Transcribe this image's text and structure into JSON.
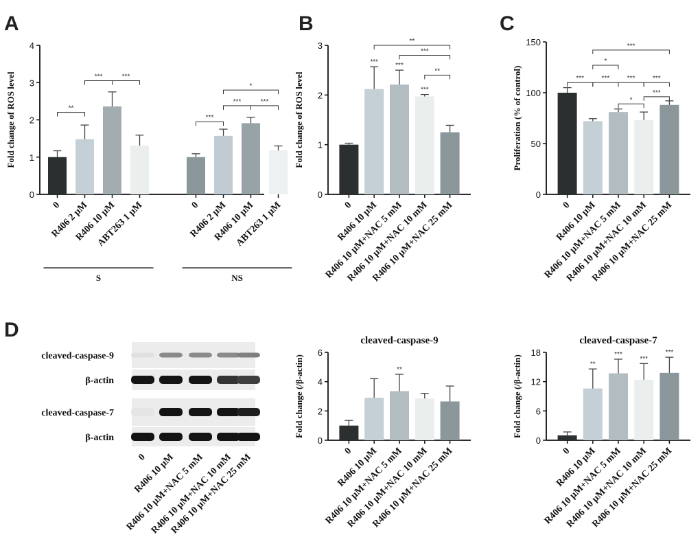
{
  "panels": {
    "A": "A",
    "B": "B",
    "C": "C",
    "D": "D"
  },
  "chart_data": [
    {
      "id": "A",
      "type": "bar",
      "ylabel": "Fold change of ROS level",
      "ylim": [
        0,
        4
      ],
      "yticks": [
        0,
        1,
        2,
        3,
        4
      ],
      "categories": [
        "0",
        "R406 2 µM",
        "R406 10 µM",
        "ABT263 1 µM",
        "0",
        "R406 2 µM",
        "R406 10 µM",
        "ABT263 1 µM"
      ],
      "values": [
        1.0,
        1.48,
        2.36,
        1.31,
        1.0,
        1.57,
        1.91,
        1.18
      ],
      "errors": [
        0.17,
        0.38,
        0.39,
        0.28,
        0.09,
        0.18,
        0.16,
        0.12
      ],
      "colors": [
        "#2b2f2f",
        "#c5d0d6",
        "#a3adb1",
        "#eaeeed",
        "#8c979b",
        "#c1cbd1",
        "#98a3a7",
        "#eef1f1"
      ],
      "groups": [
        {
          "label": "S",
          "from": 0,
          "to": 3
        },
        {
          "label": "NS",
          "from": 4,
          "to": 7
        }
      ],
      "significance": [
        {
          "from": 0,
          "to": 1,
          "label": "**",
          "y": 2.2
        },
        {
          "from": 1,
          "to": 2,
          "label": "***",
          "y": 3.05
        },
        {
          "from": 2,
          "to": 3,
          "label": "***",
          "y": 3.05
        },
        {
          "from": 4,
          "to": 5,
          "label": "***",
          "y": 1.95
        },
        {
          "from": 5,
          "to": 7,
          "label": "*",
          "y": 2.8
        },
        {
          "from": 5,
          "to": 6,
          "label": "***",
          "y": 2.38
        },
        {
          "from": 6,
          "to": 7,
          "label": "***",
          "y": 2.38
        }
      ]
    },
    {
      "id": "B",
      "type": "bar",
      "ylabel": "Fold change of ROS level",
      "ylim": [
        0,
        3
      ],
      "yticks": [
        0,
        1,
        2,
        3
      ],
      "categories": [
        "0",
        "R406 10 µM",
        "R406 10 µM+NAC 5 mM",
        "R406 10 µM+NAC 10 mM",
        "R406 10 µM+NAC 25 mM"
      ],
      "values": [
        1.0,
        2.12,
        2.21,
        1.97,
        1.25
      ],
      "errors": [
        0.03,
        0.45,
        0.29,
        0.04,
        0.14
      ],
      "colors": [
        "#2b2f2f",
        "#c5d0d6",
        "#b3bdc1",
        "#eaeeed",
        "#8c979b"
      ],
      "bar_labels": [
        "",
        "***",
        "***",
        "***",
        ""
      ],
      "significance": [
        {
          "from": 1,
          "to": 4,
          "label": "**",
          "y": 3.0
        },
        {
          "from": 2,
          "to": 4,
          "label": "***",
          "y": 2.8
        },
        {
          "from": 3,
          "to": 4,
          "label": "**",
          "y": 2.4
        }
      ]
    },
    {
      "id": "C",
      "type": "bar",
      "ylabel": "Proliferation (% of control)",
      "ylim": [
        0,
        150
      ],
      "yticks": [
        0,
        50,
        100,
        150
      ],
      "categories": [
        "0",
        "R406 10 µM",
        "R406 10 µM+NAC 5 mM",
        "R406 10 µM+NAC 10 mM",
        "R406 10 µM+NAC 25 mM"
      ],
      "values": [
        100,
        72,
        81,
        73,
        88
      ],
      "errors": [
        5,
        2.5,
        3,
        8,
        4
      ],
      "colors": [
        "#2b2f2f",
        "#c5d0d6",
        "#b3bdc1",
        "#eaeeed",
        "#8c979b"
      ],
      "significance": [
        {
          "from": 1,
          "to": 4,
          "label": "***",
          "y": 142
        },
        {
          "from": 1,
          "to": 2,
          "label": "*",
          "y": 127
        },
        {
          "from": 0,
          "to": 1,
          "label": "***",
          "y": 110
        },
        {
          "from": 1,
          "to": 2,
          "label": "***",
          "y": 110
        },
        {
          "from": 2,
          "to": 3,
          "label": "***",
          "y": 110
        },
        {
          "from": 3,
          "to": 4,
          "label": "***",
          "y": 110
        },
        {
          "from": 2,
          "to": 3,
          "label": "*",
          "y": 89
        },
        {
          "from": 3,
          "to": 4,
          "label": "***",
          "y": 96
        }
      ]
    },
    {
      "id": "D1",
      "type": "bar",
      "title": "cleaved-caspase-9",
      "ylabel": "Fold change (/β-actin)",
      "ylim": [
        0,
        6
      ],
      "yticks": [
        0,
        2,
        4,
        6
      ],
      "categories": [
        "0",
        "R406 10 µM",
        "R406 10 µM+NAC 5 mM",
        "R406 10 µM+NAC 10 mM",
        "R406 10 µM+NAC 25 mM"
      ],
      "values": [
        1.0,
        2.9,
        3.35,
        2.85,
        2.65
      ],
      "errors": [
        0.35,
        1.3,
        1.15,
        0.35,
        1.05
      ],
      "colors": [
        "#2b2f2f",
        "#c5d0d6",
        "#b3bdc1",
        "#eaeeed",
        "#8c979b"
      ],
      "bar_labels": [
        "",
        "",
        "**",
        "",
        ""
      ]
    },
    {
      "id": "D2",
      "type": "bar",
      "title": "cleaved-caspase-7",
      "ylabel": "Fold change (/β-actin)",
      "ylim": [
        0,
        18
      ],
      "yticks": [
        0,
        6,
        12,
        18
      ],
      "categories": [
        "0",
        "R406 10 µM",
        "R406 10 µM+NAC 5 mM",
        "R406 10 µM+NAC 10 mM",
        "R406 10 µM+NAC 25 mM"
      ],
      "values": [
        1.0,
        10.6,
        13.7,
        12.4,
        13.8
      ],
      "errors": [
        0.7,
        4.0,
        2.9,
        3.3,
        3.2
      ],
      "colors": [
        "#2b2f2f",
        "#c5d0d6",
        "#b3bdc1",
        "#eaeeed",
        "#8c979b"
      ],
      "bar_labels": [
        "",
        "**",
        "***",
        "***",
        "***"
      ]
    }
  ],
  "blot": {
    "rows": [
      {
        "label": "cleaved-caspase-9",
        "intensity": [
          0.05,
          0.45,
          0.45,
          0.45,
          0.5
        ],
        "faint": true
      },
      {
        "label": "β-actin",
        "intensity": [
          1,
          1,
          1,
          0.85,
          0.8
        ],
        "faint": false
      },
      {
        "label": "cleaved-caspase-7",
        "intensity": [
          0.03,
          1,
          1,
          1,
          0.95
        ],
        "faint": false
      },
      {
        "label": "β-actin",
        "intensity": [
          1,
          1,
          1,
          1,
          1
        ],
        "faint": false
      }
    ],
    "lanes": [
      "0",
      "R406 10 µM",
      "R406 10 µM+NAC 5 mM",
      "R406 10 µM+NAC 10 mM",
      "R406 10 µM+NAC 25 mM"
    ]
  }
}
